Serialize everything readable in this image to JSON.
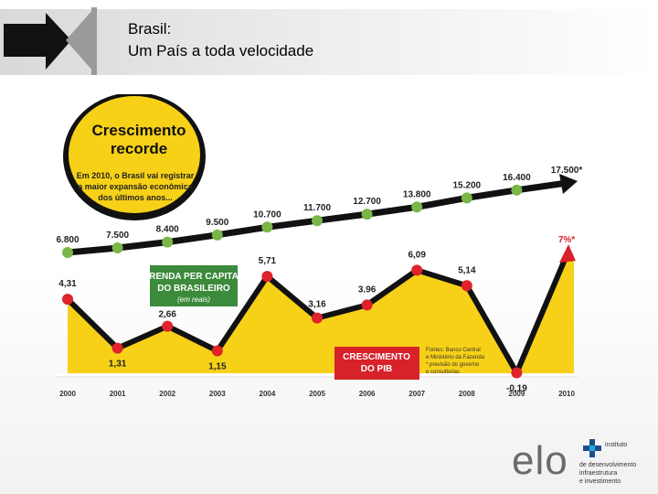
{
  "slide": {
    "title_line1": "Brasil:",
    "title_line2": "Um País a toda velocidade"
  },
  "colors": {
    "yellow": "#f7d117",
    "black": "#111111",
    "green": "#7ab648",
    "green_dark": "#3c8a3c",
    "red": "#e0222b",
    "red_box": "#d7222a"
  },
  "chart_data": {
    "type": "line",
    "categories": [
      "2000",
      "2001",
      "2002",
      "2003",
      "2004",
      "2005",
      "2006",
      "2007",
      "2008",
      "2009",
      "2010"
    ],
    "badge": {
      "title": "Crescimento recorde",
      "title_line1": "Crescimento",
      "title_line2": "recorde",
      "text_line1": "Em 2010, o Brasil vai registrar",
      "text_line2": "a maior expansão econômica",
      "text_line3": "dos últimos anos..."
    },
    "series": [
      {
        "name": "RENDA PER CAPITA DO BRASILEIRO",
        "label_line1": "RENDA PER CAPITA",
        "label_line2": "DO BRASILEIRO",
        "unit": "(em reais)",
        "values": [
          6800,
          7500,
          8400,
          9500,
          10700,
          11700,
          12700,
          13800,
          15200,
          16400,
          17500
        ],
        "labels": [
          "6.800",
          "7.500",
          "8.400",
          "9.500",
          "10.700",
          "11.700",
          "12.700",
          "13.800",
          "15.200",
          "16.400",
          "17.500*"
        ]
      },
      {
        "name": "CRESCIMENTO DO PIB",
        "label_line1": "CRESCIMENTO",
        "label_line2": "DO PIB",
        "values": [
          4.31,
          1.31,
          2.66,
          1.15,
          5.71,
          3.16,
          3.96,
          6.09,
          5.14,
          -0.19,
          7
        ],
        "labels": [
          "4,31",
          "1,31",
          "2,66",
          "1,15",
          "5,71",
          "3,16",
          "3.96",
          "6,09",
          "5,14",
          "-0,19",
          "7%*"
        ]
      }
    ],
    "sources": [
      "Fontes: Banco Central",
      "e Ministério da Fazenda",
      "* previsão do governo",
      "e consultorias"
    ]
  },
  "brand": {
    "name": "elo",
    "tagline_line1": "instituto",
    "tagline_line2": "de desenvolvimento",
    "tagline_line3": "infraestrutura",
    "tagline_line4": "e investimento"
  }
}
